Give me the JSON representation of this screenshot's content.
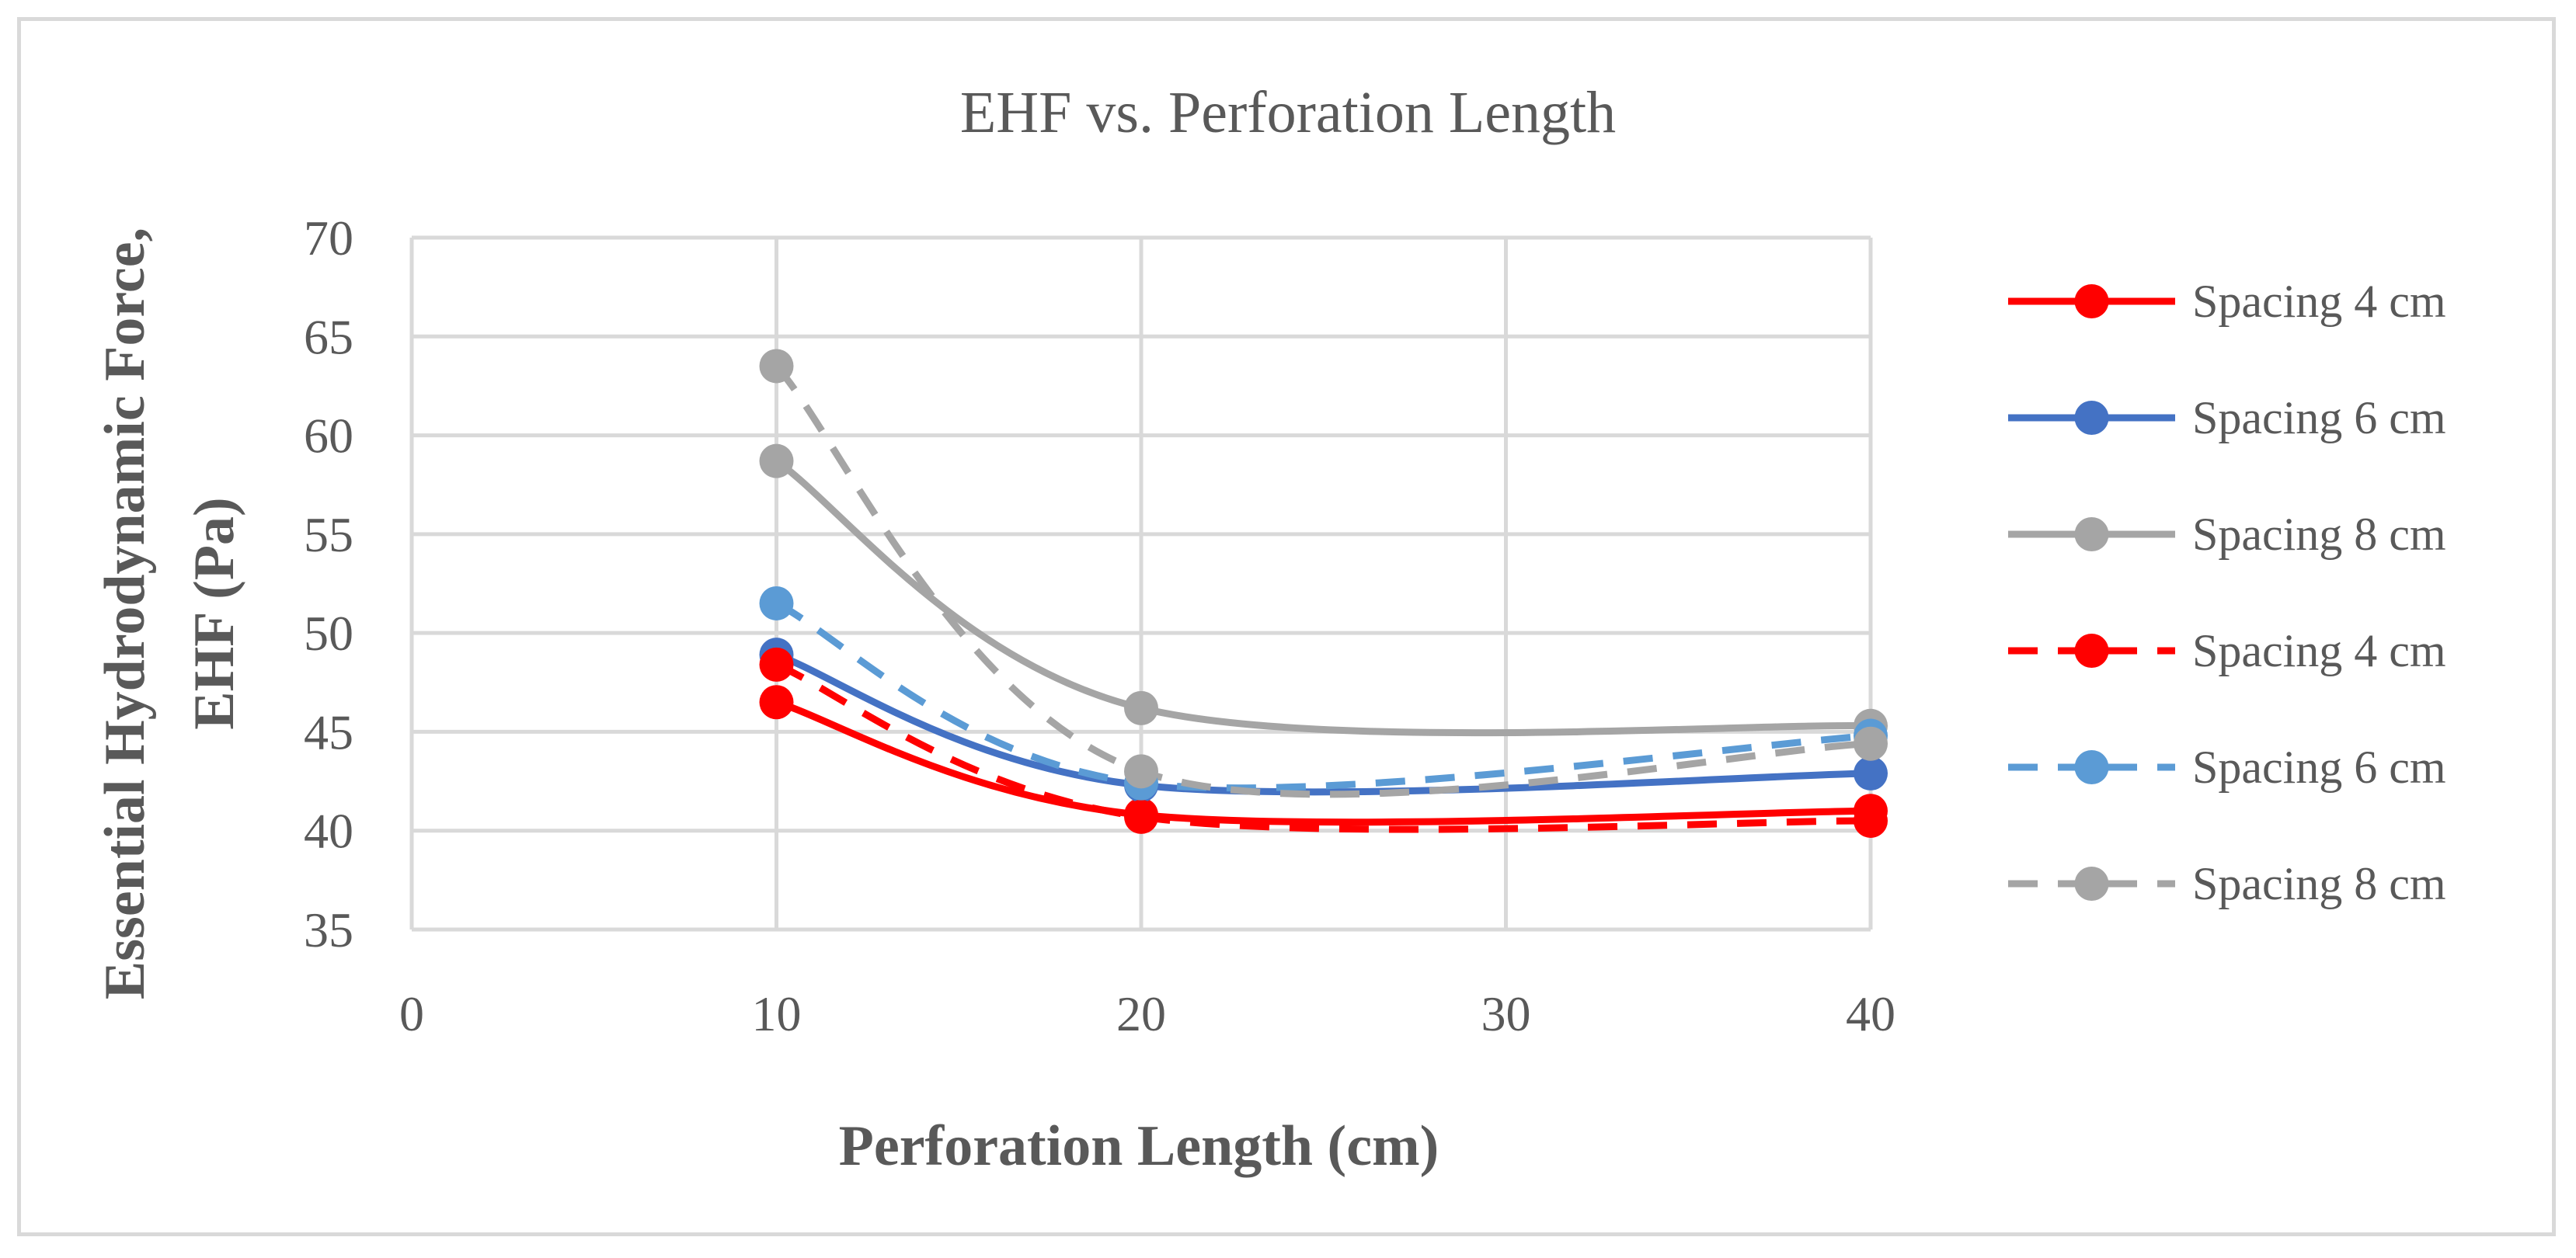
{
  "chart_data": {
    "type": "line",
    "title": "EHF vs. Perforation Length",
    "xlabel": "Perforation Length (cm)",
    "ylabel_lines": [
      "Essential Hydrodynamic Force,",
      "EHF (Pa)"
    ],
    "xlim": [
      0,
      40
    ],
    "ylim": [
      35,
      70
    ],
    "x_ticks": [
      "0",
      "10",
      "20",
      "30",
      "40"
    ],
    "y_ticks": [
      "35",
      "40",
      "45",
      "50",
      "55",
      "60",
      "65",
      "70"
    ],
    "grid": true,
    "legend_position": "right",
    "x": [
      10,
      20,
      40
    ],
    "series": [
      {
        "name": "Spacing 4 cm",
        "values": [
          46.5,
          40.8,
          41.0
        ],
        "color": "#ff0000",
        "dash": "solid"
      },
      {
        "name": "Spacing 6 cm",
        "values": [
          48.9,
          42.3,
          42.9
        ],
        "color": "#4472c4",
        "dash": "solid"
      },
      {
        "name": "Spacing 8 cm",
        "values": [
          58.7,
          46.2,
          45.3
        ],
        "color": "#a5a5a5",
        "dash": "solid"
      },
      {
        "name": "Spacing 4 cm",
        "values": [
          48.4,
          40.7,
          40.5
        ],
        "color": "#ff0000",
        "dash": "dashed"
      },
      {
        "name": "Spacing 6 cm",
        "values": [
          51.5,
          42.4,
          44.8
        ],
        "color": "#5b9bd5",
        "dash": "dashed"
      },
      {
        "name": "Spacing 8 cm",
        "values": [
          63.5,
          43.0,
          44.4
        ],
        "color": "#a5a5a5",
        "dash": "dashed"
      }
    ]
  }
}
